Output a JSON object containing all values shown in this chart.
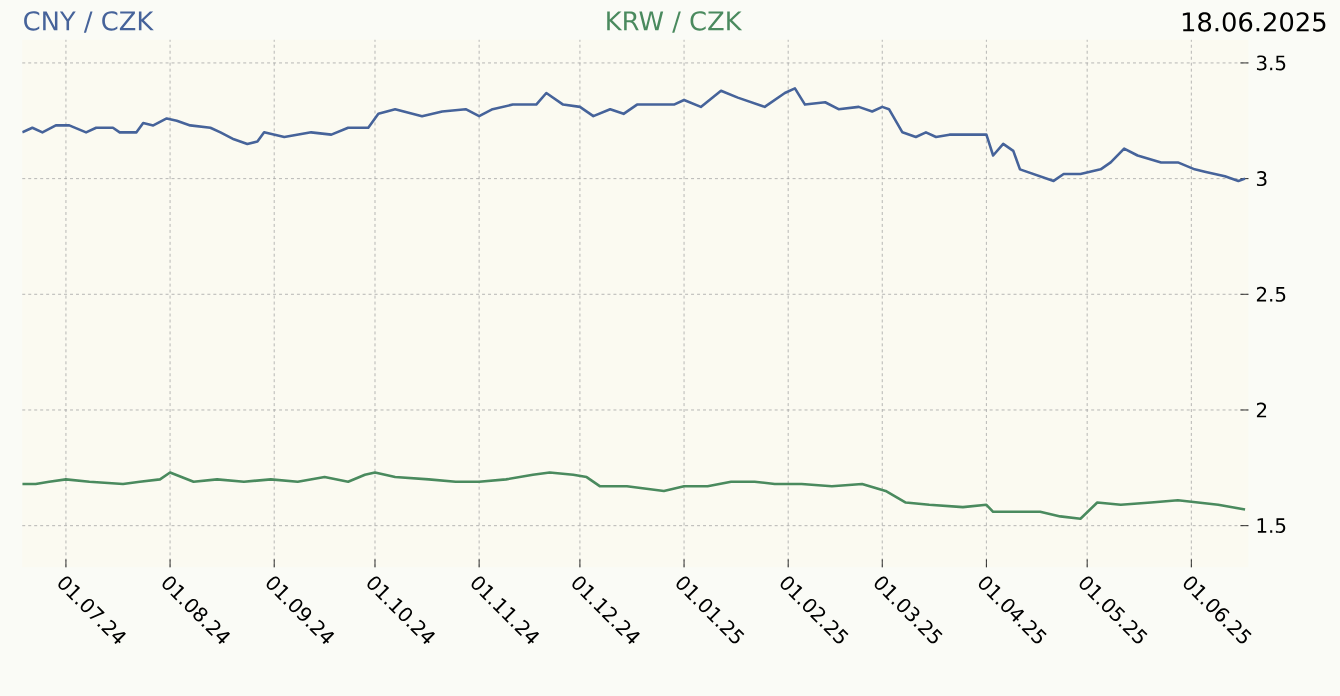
{
  "chart_data": {
    "type": "line",
    "annotations": [
      "18.06.2025"
    ],
    "legend": "top",
    "grid": true,
    "line_style": "solid",
    "marker": "none",
    "xlim": [
      "2024-06-18",
      "2025-06-18"
    ],
    "xticks": [
      {
        "value": "2024-07-01",
        "label": "01.07.24"
      },
      {
        "value": "2024-08-01",
        "label": "01.08.24"
      },
      {
        "value": "2024-09-01",
        "label": "01.09.24"
      },
      {
        "value": "2024-10-01",
        "label": "01.10.24"
      },
      {
        "value": "2024-11-01",
        "label": "01.11.24"
      },
      {
        "value": "2024-12-01",
        "label": "01.12.24"
      },
      {
        "value": "2025-01-01",
        "label": "01.01.25"
      },
      {
        "value": "2025-02-01",
        "label": "01.02.25"
      },
      {
        "value": "2025-03-01",
        "label": "01.03.25"
      },
      {
        "value": "2025-04-01",
        "label": "01.04.25"
      },
      {
        "value": "2025-05-01",
        "label": "01.05.25"
      },
      {
        "value": "2025-06-01",
        "label": "01.06.25"
      }
    ],
    "ylim": [
      1.32,
      3.6
    ],
    "yticks": [
      1.5,
      2,
      2.5,
      3,
      3.5
    ],
    "series": [
      {
        "name": "CNY / CZK",
        "color": "#46639a",
        "x": [
          "2024-06-18",
          "2024-06-21",
          "2024-06-24",
          "2024-06-28",
          "2024-07-02",
          "2024-07-07",
          "2024-07-10",
          "2024-07-15",
          "2024-07-17",
          "2024-07-22",
          "2024-07-24",
          "2024-07-27",
          "2024-07-31",
          "2024-08-03",
          "2024-08-07",
          "2024-08-13",
          "2024-08-16",
          "2024-08-20",
          "2024-08-24",
          "2024-08-27",
          "2024-08-29",
          "2024-09-04",
          "2024-09-12",
          "2024-09-18",
          "2024-09-23",
          "2024-09-29",
          "2024-10-02",
          "2024-10-07",
          "2024-10-15",
          "2024-10-21",
          "2024-10-28",
          "2024-11-01",
          "2024-11-05",
          "2024-11-11",
          "2024-11-18",
          "2024-11-21",
          "2024-11-26",
          "2024-12-01",
          "2024-12-05",
          "2024-12-10",
          "2024-12-14",
          "2024-12-18",
          "2024-12-25",
          "2024-12-29",
          "2025-01-01",
          "2025-01-06",
          "2025-01-12",
          "2025-01-17",
          "2025-01-25",
          "2025-01-31",
          "2025-02-03",
          "2025-02-06",
          "2025-02-12",
          "2025-02-16",
          "2025-02-22",
          "2025-02-26",
          "2025-03-01",
          "2025-03-03",
          "2025-03-07",
          "2025-03-11",
          "2025-03-14",
          "2025-03-17",
          "2025-03-21",
          "2025-03-29",
          "2025-04-01",
          "2025-04-03",
          "2025-04-06",
          "2025-04-09",
          "2025-04-11",
          "2025-04-21",
          "2025-04-24",
          "2025-04-29",
          "2025-05-05",
          "2025-05-08",
          "2025-05-12",
          "2025-05-16",
          "2025-05-23",
          "2025-05-28",
          "2025-06-02",
          "2025-06-05",
          "2025-06-11",
          "2025-06-15",
          "2025-06-17"
        ],
        "values": [
          3.2,
          3.22,
          3.2,
          3.23,
          3.23,
          3.2,
          3.22,
          3.22,
          3.2,
          3.2,
          3.24,
          3.23,
          3.26,
          3.25,
          3.23,
          3.22,
          3.2,
          3.17,
          3.15,
          3.16,
          3.2,
          3.18,
          3.2,
          3.19,
          3.22,
          3.22,
          3.28,
          3.3,
          3.27,
          3.29,
          3.3,
          3.27,
          3.3,
          3.32,
          3.32,
          3.37,
          3.32,
          3.31,
          3.27,
          3.3,
          3.28,
          3.32,
          3.32,
          3.32,
          3.34,
          3.31,
          3.38,
          3.35,
          3.31,
          3.37,
          3.39,
          3.32,
          3.33,
          3.3,
          3.31,
          3.29,
          3.31,
          3.3,
          3.2,
          3.18,
          3.2,
          3.18,
          3.19,
          3.19,
          3.19,
          3.1,
          3.15,
          3.12,
          3.04,
          2.99,
          3.02,
          3.02,
          3.04,
          3.07,
          3.13,
          3.1,
          3.07,
          3.07,
          3.04,
          3.03,
          3.01,
          2.99,
          3.0
        ]
      },
      {
        "name": "KRW / CZK",
        "color": "#4a8a5e",
        "x": [
          "2024-06-18",
          "2024-06-22",
          "2024-06-26",
          "2024-07-01",
          "2024-07-08",
          "2024-07-18",
          "2024-07-23",
          "2024-07-29",
          "2024-08-01",
          "2024-08-08",
          "2024-08-15",
          "2024-08-23",
          "2024-08-31",
          "2024-09-08",
          "2024-09-16",
          "2024-09-23",
          "2024-09-28",
          "2024-10-01",
          "2024-10-07",
          "2024-10-17",
          "2024-10-25",
          "2024-11-01",
          "2024-11-09",
          "2024-11-17",
          "2024-11-22",
          "2024-11-29",
          "2024-12-03",
          "2024-12-07",
          "2024-12-15",
          "2024-12-26",
          "2025-01-01",
          "2025-01-08",
          "2025-01-15",
          "2025-01-22",
          "2025-01-28",
          "2025-02-05",
          "2025-02-14",
          "2025-02-23",
          "2025-03-02",
          "2025-03-08",
          "2025-03-15",
          "2025-03-25",
          "2025-04-01",
          "2025-04-03",
          "2025-04-08",
          "2025-04-17",
          "2025-04-23",
          "2025-04-29",
          "2025-05-04",
          "2025-05-11",
          "2025-05-20",
          "2025-05-28",
          "2025-06-03",
          "2025-06-09",
          "2025-06-17"
        ],
        "values": [
          1.68,
          1.68,
          1.69,
          1.7,
          1.69,
          1.68,
          1.69,
          1.7,
          1.73,
          1.69,
          1.7,
          1.69,
          1.7,
          1.69,
          1.71,
          1.69,
          1.72,
          1.73,
          1.71,
          1.7,
          1.69,
          1.69,
          1.7,
          1.72,
          1.73,
          1.72,
          1.71,
          1.67,
          1.67,
          1.65,
          1.67,
          1.67,
          1.69,
          1.69,
          1.68,
          1.68,
          1.67,
          1.68,
          1.65,
          1.6,
          1.59,
          1.58,
          1.59,
          1.56,
          1.56,
          1.56,
          1.54,
          1.53,
          1.6,
          1.59,
          1.6,
          1.61,
          1.6,
          1.59,
          1.57
        ]
      }
    ]
  }
}
